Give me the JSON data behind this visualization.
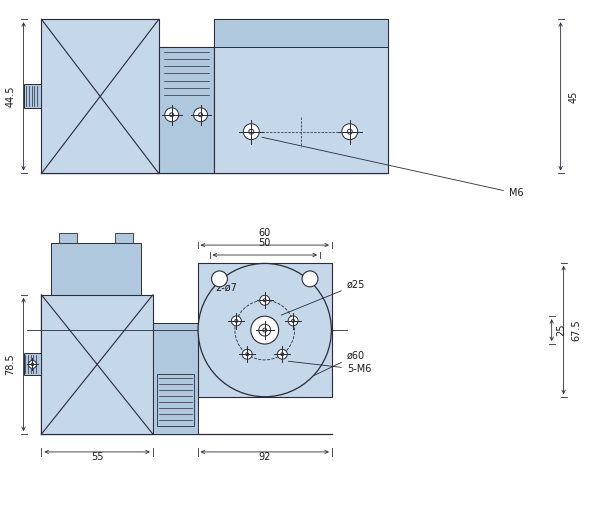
{
  "bg_color": "#ffffff",
  "fill_light": "#c5d8ea",
  "fill_medium": "#b0c8de",
  "fill_dark": "#a0b8ce",
  "line_color": "#2a2a3a",
  "dim_color": "#1a1a1a",
  "figsize": [
    6.15,
    5.13
  ],
  "dpi": 100,
  "labels": {
    "44_5": "44.5",
    "45": "45",
    "M6": "M6",
    "60": "60",
    "50": "50",
    "2phi7": "2-ø7",
    "78_5": "78.5",
    "67_5": "67.5",
    "25": "25",
    "phi25": "ø25",
    "phi60": "ø60",
    "5M6": "5-M6",
    "55": "55",
    "92": "92"
  }
}
